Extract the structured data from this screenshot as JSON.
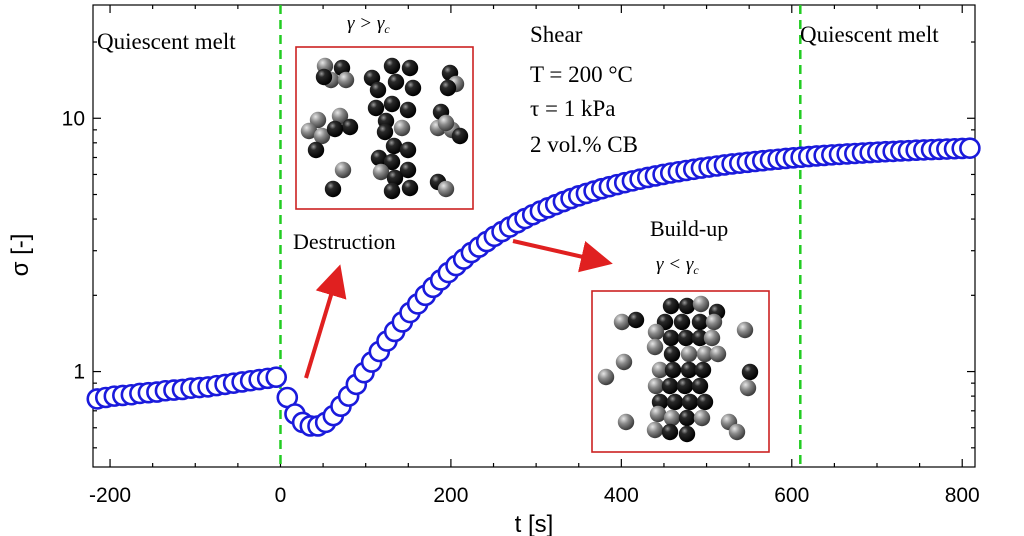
{
  "chart_data": {
    "type": "scatter",
    "xlabel": "t [s]",
    "ylabel": "σ [-]",
    "xlim": [
      -220,
      815
    ],
    "ylim": [
      0.42,
      28
    ],
    "yscale": "log",
    "xticks": [
      -200,
      0,
      200,
      400,
      600,
      800
    ],
    "yticks": [
      1,
      10
    ],
    "marker_color": "#1a1adc",
    "phase_line_color": "#22cc22",
    "arrow_color": "#e02020",
    "box_color": "#cc2222",
    "phase_boundaries": [
      0,
      610
    ],
    "series": [
      {
        "x": [
          -215,
          -205,
          -195,
          -185,
          -175,
          -165,
          -155,
          -145,
          -135,
          -125,
          -115,
          -105,
          -95,
          -85,
          -75,
          -65,
          -55,
          -45,
          -35,
          -25,
          -15,
          -5,
          8,
          17,
          26,
          35,
          44,
          53,
          62,
          71,
          80,
          89,
          98,
          107,
          116,
          125,
          134,
          143,
          152,
          161,
          170,
          179,
          188,
          197,
          206,
          215,
          224,
          233,
          242,
          251,
          260,
          269,
          278,
          287,
          296,
          305,
          314,
          323,
          332,
          341,
          350,
          359,
          368,
          377,
          386,
          395,
          404,
          413,
          422,
          431,
          440,
          449,
          458,
          467,
          476,
          485,
          494,
          503,
          512,
          521,
          530,
          539,
          548,
          557,
          566,
          575,
          584,
          593,
          602,
          611,
          620,
          629,
          638,
          647,
          656,
          665,
          674,
          683,
          692,
          701,
          710,
          719,
          728,
          737,
          746,
          755,
          764,
          773,
          782,
          791,
          800,
          809
        ],
        "y": [
          0.78,
          0.79,
          0.8,
          0.805,
          0.81,
          0.82,
          0.825,
          0.83,
          0.84,
          0.845,
          0.85,
          0.86,
          0.865,
          0.87,
          0.88,
          0.89,
          0.9,
          0.91,
          0.92,
          0.93,
          0.94,
          0.95,
          0.79,
          0.68,
          0.63,
          0.61,
          0.61,
          0.63,
          0.67,
          0.73,
          0.8,
          0.89,
          0.99,
          1.09,
          1.2,
          1.32,
          1.44,
          1.57,
          1.71,
          1.85,
          2.0,
          2.15,
          2.3,
          2.46,
          2.62,
          2.78,
          2.95,
          3.1,
          3.26,
          3.42,
          3.57,
          3.72,
          3.87,
          4.02,
          4.16,
          4.3,
          4.43,
          4.56,
          4.69,
          4.82,
          4.94,
          5.05,
          5.16,
          5.27,
          5.37,
          5.47,
          5.57,
          5.66,
          5.75,
          5.84,
          5.92,
          6.0,
          6.08,
          6.15,
          6.22,
          6.29,
          6.36,
          6.42,
          6.48,
          6.54,
          6.6,
          6.65,
          6.7,
          6.75,
          6.8,
          6.85,
          6.89,
          6.94,
          6.98,
          7.02,
          7.06,
          7.1,
          7.13,
          7.17,
          7.2,
          7.23,
          7.26,
          7.29,
          7.32,
          7.35,
          7.38,
          7.4,
          7.43,
          7.45,
          7.48,
          7.5,
          7.52,
          7.54,
          7.56,
          7.58,
          7.6,
          7.62
        ]
      }
    ]
  },
  "annotations": {
    "phase_left": "Quiescent melt",
    "phase_right": "Quiescent melt",
    "shear_title": "Shear",
    "temperature": "T = 200 °C",
    "stress": "τ = 1 kPa",
    "filler": "2 vol.% CB",
    "destruction": "Destruction",
    "buildup": "Build-up",
    "gamma_gt_gamma": "γ",
    "gamma_gt_op": " > ",
    "gamma_gt_sub": "c",
    "gamma_lt_op": " < "
  }
}
